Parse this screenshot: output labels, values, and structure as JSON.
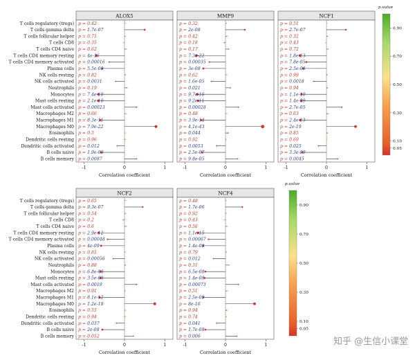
{
  "watermark": "知乎 @生信小课堂",
  "chart_data": {
    "type": "lollipop",
    "cell_types": [
      "T cells regulatory (tregs)",
      "T cells gamma delta",
      "T cells follicular helper",
      "T cells CD8",
      "T cells CD4 naive",
      "T cells CD4 memory resting",
      "T cells CD4 memory activated",
      "Plasma cells",
      "NK cells resting",
      "NK cells activated",
      "Neutrophils",
      "Monocytes",
      "Mast cells resting",
      "Mast cells activated",
      "Macrophages M2",
      "Macrophages M1",
      "Macrophages M0",
      "Eosinophils",
      "Dendritic cells resting",
      "Dendritic cells activated",
      "B cells naive",
      "B cells memory"
    ],
    "xlabel": "Correlation coefficient",
    "xlim": [
      -1.2,
      1.2
    ],
    "xticks": [
      -1,
      0,
      1
    ],
    "p_prefix": "p = ",
    "legend": {
      "title": "p.value",
      "ticks": [
        "0.90",
        "0.70",
        "0.50",
        "0.30",
        "0.10",
        "0.05"
      ],
      "tick_values": [
        0.9,
        0.7,
        0.5,
        0.3,
        0.1,
        0.05
      ],
      "color_low": "#d73027",
      "color_mid": "#fee08b",
      "color_high": "#4dac26"
    },
    "panels": [
      {
        "title": "ALOX5",
        "r": [
          0.02,
          0.5,
          0.02,
          -0.02,
          0.05,
          -0.7,
          -0.38,
          -0.55,
          0.02,
          -0.22,
          0.06,
          -0.65,
          -0.65,
          0.3,
          0.04,
          -0.6,
          0.78,
          0.03,
          0.01,
          -0.18,
          -0.58,
          0.3
        ],
        "p": [
          "0.42",
          "1.7e-07",
          "0.75",
          "0.35",
          "0.62",
          "4e-16",
          "0.00016",
          "5.5e-08",
          "0.82",
          "0.0031",
          "0.19",
          "7.4e-10",
          "2.1e-10",
          "0.00023",
          "0.66",
          "8.3e-11",
          "7.9e-22",
          "0.5",
          "0.96",
          "0.012",
          "1.9e-08",
          "0.0087"
        ]
      },
      {
        "title": "MMP9",
        "r": [
          0.02,
          0.48,
          0.05,
          -0.03,
          0.08,
          -0.72,
          -0.4,
          -0.55,
          0.03,
          -0.35,
          0.12,
          -0.7,
          -0.68,
          0.32,
          0.04,
          -0.6,
          0.92,
          0.06,
          0.01,
          -0.22,
          -0.58,
          0.3
        ],
        "p": [
          "0.32",
          "2e-08",
          "0.42",
          "0.18",
          "0.17",
          "7.3e-22",
          "0.00035",
          "3e-08",
          "0.62",
          "1.6e-05",
          "0.021",
          "9.7e-16",
          "9.2e-11",
          "0.00028",
          "0.48",
          "3.9e-14",
          "4.1e-43",
          "0.044",
          "0.92",
          "0.0053",
          "2.5e-07",
          "9.8e-05"
        ]
      },
      {
        "title": "NCF1",
        "r": [
          0.02,
          0.48,
          0.03,
          -0.02,
          0.04,
          -0.66,
          -0.5,
          -0.58,
          0.01,
          -0.32,
          0.02,
          -0.62,
          -0.62,
          0.38,
          0.05,
          -0.65,
          0.72,
          0.02,
          0.01,
          -0.2,
          -0.6,
          0.28
        ],
        "p": [
          "0.51",
          "2.7e-07",
          "0.32",
          "0.43",
          "0.72",
          "1.8e-13",
          "7.8e-05",
          "2.5e-08",
          "0.99",
          "0.0018",
          "0.94",
          "1.1e-10",
          "1.4e-09",
          "2.7e-05",
          "0.63",
          "2.4e-13",
          "2e-19",
          "0.85",
          "0.69",
          "0.025",
          "3.3e-09",
          "0.0045"
        ]
      },
      {
        "title": "NCF2",
        "r": [
          0.03,
          0.45,
          0.04,
          -0.03,
          0.05,
          -0.64,
          -0.42,
          -0.58,
          0.01,
          -0.28,
          0.02,
          -0.6,
          -0.6,
          0.3,
          0.01,
          -0.62,
          0.75,
          0.03,
          0.01,
          -0.2,
          -0.55,
          0.22
        ],
        "p": [
          "0.65",
          "9.3e-07",
          "0.54",
          "0.2",
          "0.6",
          "2.9e-12",
          "0.00048",
          "4e-09",
          "0.85",
          "0.00056",
          "0.88",
          "6.8e-08",
          "3.5e-08",
          "0.0019",
          "0.91",
          "8.1e-12",
          "1.2e-18",
          "0.55",
          "0.94",
          "0.037",
          "2e-08",
          "0.052"
        ]
      },
      {
        "title": "NCF4",
        "r": [
          0.03,
          0.42,
          0.01,
          -0.03,
          0.05,
          -0.68,
          -0.42,
          -0.55,
          0.02,
          -0.3,
          0.09,
          -0.5,
          -0.52,
          0.32,
          0.06,
          -0.55,
          0.72,
          0.03,
          0.02,
          -0.22,
          -0.5,
          0.28
        ],
        "p": [
          "0.48",
          "1.7e-06",
          "0.92",
          "0.43",
          "0.56",
          "1.1e-15",
          "0.00067",
          "1.4e-08",
          "0.79",
          "0.012",
          "0.31",
          "6.5e-08",
          "1.4e-08",
          "0.00073",
          "0.51",
          "2.5e-09",
          "8e-16",
          "0.94",
          "0.74",
          "0.041",
          "1.7e-08",
          "0.006"
        ]
      }
    ]
  }
}
